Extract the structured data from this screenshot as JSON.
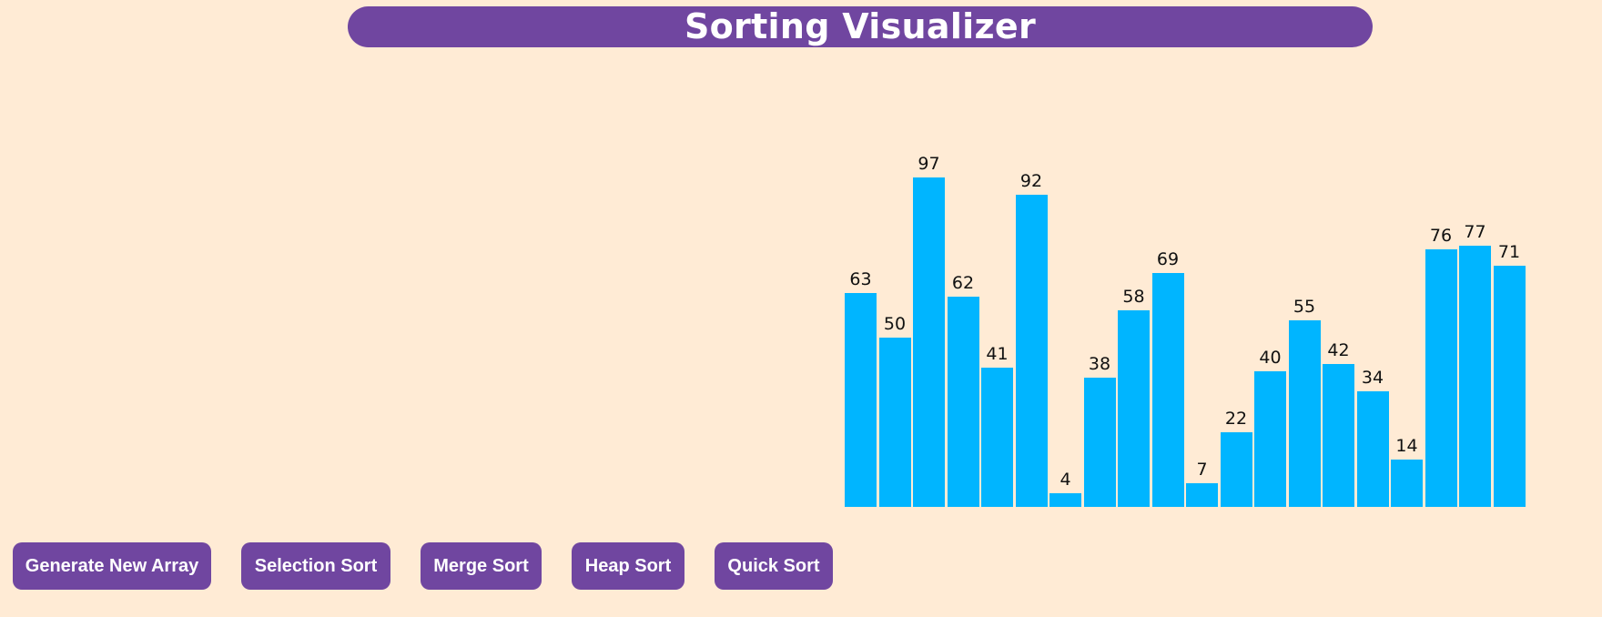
{
  "header": {
    "title": "Sorting Visualizer"
  },
  "colors": {
    "background": "#ffebd5",
    "accent": "#7046a0",
    "bar": "#00b5ff",
    "text_on_accent": "#ffffff"
  },
  "chart_data": {
    "type": "bar",
    "values": [
      63,
      50,
      97,
      62,
      41,
      92,
      4,
      38,
      58,
      69,
      7,
      22,
      40,
      55,
      42,
      34,
      14,
      76,
      77,
      71
    ],
    "ylim": [
      0,
      100
    ]
  },
  "buttons": {
    "generate": "Generate New Array",
    "selection": "Selection Sort",
    "merge": "Merge Sort",
    "heap": "Heap Sort",
    "quick": "Quick Sort"
  }
}
